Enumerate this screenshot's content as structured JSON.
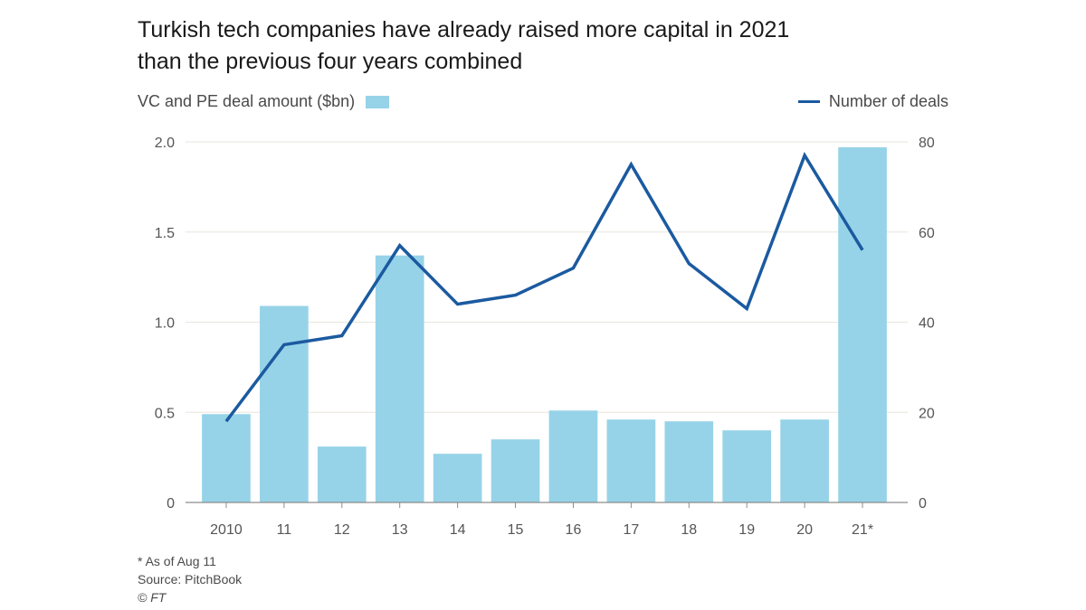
{
  "title_lines": [
    "Turkish tech companies have already raised more capital in 2021",
    "than the previous four years combined"
  ],
  "legend": {
    "bars_label": "VC and PE deal amount ($bn)",
    "line_label": "Number of deals"
  },
  "footnotes": {
    "note": "* As of Aug 11",
    "source": "Source: PitchBook",
    "credit": "© FT"
  },
  "colors": {
    "bar": "#97d3e8",
    "line": "#1b5aa0",
    "grid": "#e8e6dc",
    "axis": "#8c8c8c",
    "tick_text": "#555555"
  },
  "chart_data": {
    "type": "bar+line",
    "title": "Turkish tech companies have already raised more capital in 2021 than the previous four years combined",
    "categories": [
      "2010",
      "11",
      "12",
      "13",
      "14",
      "15",
      "16",
      "17",
      "18",
      "19",
      "20",
      "21*"
    ],
    "series": [
      {
        "name": "VC and PE deal amount ($bn)",
        "type": "bar",
        "axis": "left",
        "values": [
          0.49,
          1.09,
          0.31,
          1.37,
          0.27,
          0.35,
          0.51,
          0.46,
          0.45,
          0.4,
          0.46,
          1.97
        ]
      },
      {
        "name": "Number of deals",
        "type": "line",
        "axis": "right",
        "values": [
          18,
          35,
          37,
          57,
          44,
          46,
          52,
          75,
          53,
          43,
          77,
          56
        ]
      }
    ],
    "left_axis": {
      "ylim": [
        0,
        2.0
      ],
      "ticks": [
        0,
        0.5,
        1.0,
        1.5,
        2.0
      ],
      "tick_labels": [
        "0",
        "0.5",
        "1.0",
        "1.5",
        "2.0"
      ]
    },
    "right_axis": {
      "ylim": [
        0,
        80
      ],
      "ticks": [
        0,
        20,
        40,
        60,
        80
      ],
      "tick_labels": [
        "0",
        "20",
        "40",
        "60",
        "80"
      ]
    },
    "grid": true
  }
}
